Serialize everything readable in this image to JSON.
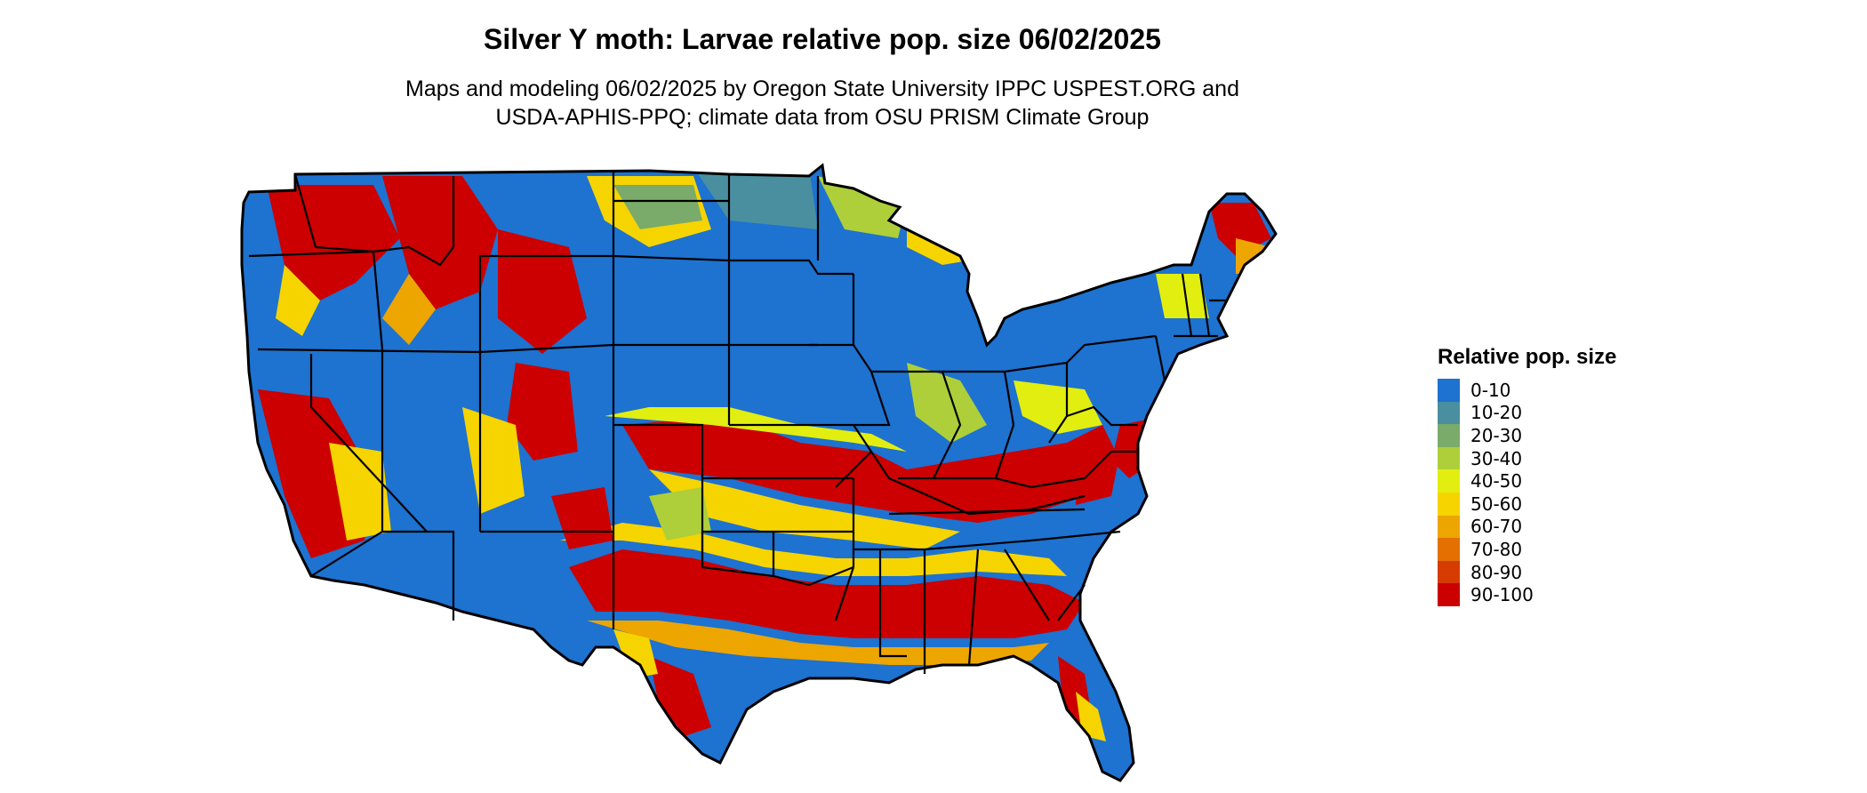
{
  "header": {
    "title": "Silver Y moth: Larvae relative pop. size 06/02/2025",
    "subtitle_line1": "Maps and modeling 06/02/2025 by Oregon State University IPPC USPEST.ORG and",
    "subtitle_line2": "USDA-APHIS-PPQ; climate data from OSU PRISM Climate Group"
  },
  "legend": {
    "title": "Relative pop. size",
    "items": [
      {
        "label": "0-10",
        "color": "#1e72d0"
      },
      {
        "label": "10-20",
        "color": "#4a8fa0"
      },
      {
        "label": "20-30",
        "color": "#7aab6a"
      },
      {
        "label": "30-40",
        "color": "#aecf3a"
      },
      {
        "label": "40-50",
        "color": "#e2ee10"
      },
      {
        "label": "50-60",
        "color": "#f6d400"
      },
      {
        "label": "60-70",
        "color": "#eda500"
      },
      {
        "label": "70-80",
        "color": "#e37000"
      },
      {
        "label": "80-90",
        "color": "#d63b00"
      },
      {
        "label": "90-100",
        "color": "#cc0000"
      }
    ]
  }
}
